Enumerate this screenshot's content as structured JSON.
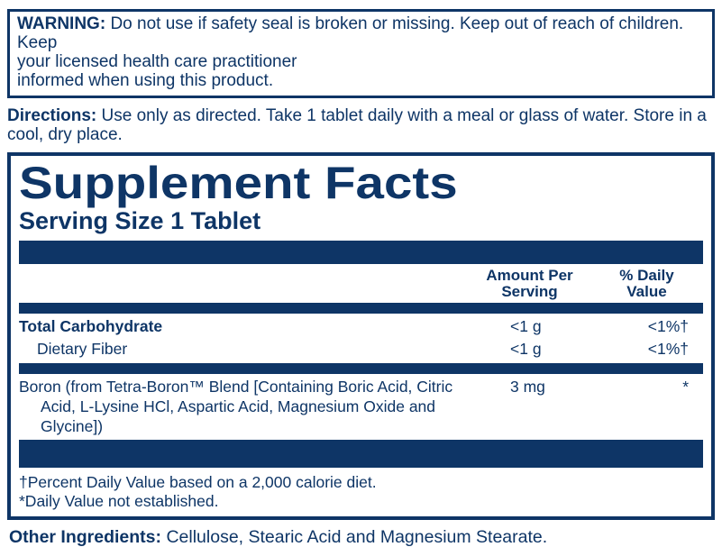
{
  "colors": {
    "navy": "#0e3566"
  },
  "warning": {
    "label": "WARNING:",
    "text": "Do not use if safety seal is broken or missing. Keep out of reach of children. Keep\nyour licensed health care practitioner\ninformed when using this product."
  },
  "directions": {
    "label": "Directions:",
    "text": "Use only as directed. Take 1 tablet daily with a meal or glass of water. Store in a\ncool, dry place."
  },
  "facts": {
    "title": "Supplement Facts",
    "serving_size": "Serving Size 1 Tablet",
    "columns": {
      "amount": "Amount Per\nServing",
      "daily_value": "% Daily\nValue"
    },
    "rows": [
      {
        "name": "Total Carbohydrate",
        "amount": "<1 g",
        "daily_value": "<1%†"
      },
      {
        "name": "Dietary Fiber",
        "amount": "<1 g",
        "daily_value": "<1%†"
      },
      {
        "name": "Boron (from Tetra-Boron™ Blend [Containing Boric Acid, Citric\nAcid, L-Lysine HCl, Aspartic Acid, Magnesium Oxide and\nGlycine])",
        "amount": "3 mg",
        "daily_value": "*"
      }
    ],
    "footnotes": [
      "†Percent Daily Value based on a 2,000 calorie diet.",
      "*Daily Value not established."
    ]
  },
  "other_ingredients": {
    "label": "Other Ingredients:",
    "text": " Cellulose, Stearic Acid and Magnesium Stearate."
  }
}
